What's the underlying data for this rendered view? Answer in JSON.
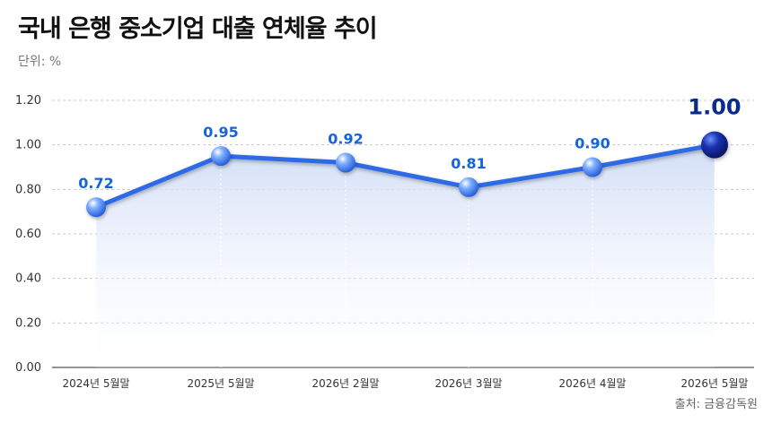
{
  "title": "국내 은행 중소기업 대출 연체율 추이",
  "unit_label": "단위: %",
  "source": "출처: 금융감독원",
  "chart_data": {
    "type": "line",
    "categories": [
      "2024년 5월말",
      "2025년 5월말",
      "2026년 2월말",
      "2026년 3월말",
      "2026년 4월말",
      "2026년 5월말"
    ],
    "values": [
      0.72,
      0.95,
      0.92,
      0.81,
      0.9,
      1.0
    ],
    "data_labels": [
      "0.72",
      "0.95",
      "0.92",
      "0.81",
      "0.90",
      "1.00"
    ],
    "y_ticks": [
      "0.00",
      "0.20",
      "0.40",
      "0.60",
      "0.80",
      "1.00",
      "1.20"
    ],
    "ylim": [
      0,
      1.2
    ],
    "grid": true,
    "colors": {
      "line": "#2f6ae6",
      "marker": "#3b7bf0",
      "last_marker": "#0a1f80",
      "label": "#1565d8",
      "last_label": "#0a2a8c",
      "area_top": "#cfdcf6",
      "grid": "#c8c8c8"
    }
  }
}
